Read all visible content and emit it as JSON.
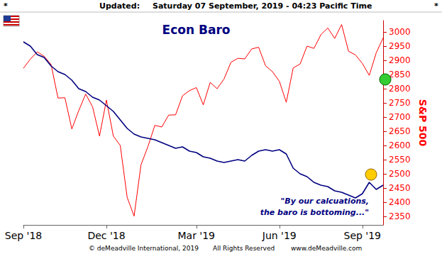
{
  "chart_data": {
    "type": "line",
    "title": "Econ Baro",
    "header": [
      "*",
      "Updated:",
      "Saturday 07 September, 2019 - 04:23 Pacific Time",
      "*"
    ],
    "categories": [
      "Sep '18",
      null,
      null,
      null,
      null,
      null,
      null,
      null,
      null,
      null,
      null,
      null,
      "Dec '18",
      null,
      null,
      null,
      null,
      null,
      null,
      null,
      null,
      null,
      null,
      null,
      null,
      "Mar '19",
      null,
      null,
      null,
      null,
      null,
      null,
      null,
      null,
      null,
      null,
      null,
      "Jun '19",
      null,
      null,
      null,
      null,
      null,
      null,
      null,
      null,
      null,
      null,
      null,
      "Sep '19",
      null,
      null,
      null
    ],
    "series": [
      {
        "name": "Econ Baro",
        "color": "#000080",
        "line_style": "solid",
        "values": [
          2965,
          2950,
          2920,
          2910,
          2880,
          2860,
          2850,
          2830,
          2800,
          2790,
          2770,
          2760,
          2740,
          2720,
          2690,
          2660,
          2640,
          2630,
          2625,
          2620,
          2610,
          2600,
          2590,
          2595,
          2580,
          2575,
          2560,
          2555,
          2545,
          2540,
          2545,
          2550,
          2545,
          2565,
          2580,
          2585,
          2580,
          2585,
          2570,
          2520,
          2500,
          2490,
          2470,
          2460,
          2455,
          2440,
          2435,
          2425,
          2415,
          2430,
          2470,
          2445,
          2460
        ]
      },
      {
        "name": "S&P 500",
        "color": "#ff0000",
        "line_style": "solid",
        "values": [
          2872,
          2904,
          2930,
          2914,
          2885,
          2767,
          2768,
          2658,
          2723,
          2781,
          2736,
          2633,
          2760,
          2633,
          2600,
          2417,
          2351,
          2532,
          2596,
          2671,
          2665,
          2707,
          2708,
          2775,
          2793,
          2804,
          2743,
          2822,
          2800,
          2834,
          2893,
          2907,
          2905,
          2940,
          2946,
          2881,
          2860,
          2826,
          2752,
          2873,
          2887,
          2950,
          2942,
          2990,
          3014,
          2977,
          3026,
          2932,
          2919,
          2889,
          2847,
          2926,
          2979
        ]
      }
    ],
    "y_label": "S&P 500",
    "ylim": [
      2320,
      3040
    ],
    "yticks": [
      2350,
      2400,
      2450,
      2500,
      2550,
      2600,
      2650,
      2700,
      2750,
      2800,
      2850,
      2900,
      2950,
      3000
    ],
    "annotation": [
      "\"By our calcuations,",
      "the baro is bottoming...\""
    ],
    "footer": [
      "© deMeadville International, 2019",
      "All Rights Reserved",
      "www.deMeadville.com"
    ],
    "grid": false
  }
}
